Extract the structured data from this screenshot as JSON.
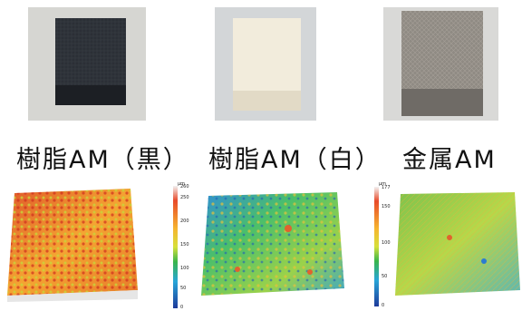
{
  "labels": {
    "resin_black": "樹脂AM（黒）",
    "resin_white": "樹脂AM（白）",
    "metal": "金属AM"
  },
  "colorbars": [
    {
      "unit": "μm",
      "ticks": [
        "260",
        "250",
        "200",
        "150",
        "100",
        "50",
        "0"
      ]
    },
    {
      "unit": "μm",
      "ticks": [
        "177",
        "150",
        "100",
        "50",
        "0"
      ]
    }
  ],
  "colors": {
    "resin_black_cube": "#25292f",
    "resin_white_cube": "#efe8d6",
    "metal_cube": "#8c8780"
  }
}
